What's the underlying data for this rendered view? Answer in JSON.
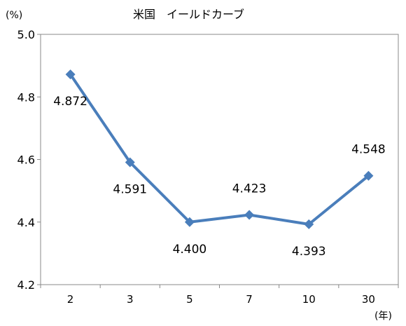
{
  "chart_data": {
    "type": "line",
    "title": "米国　イールドカーブ",
    "y_unit_label": "(%)",
    "x_unit_label": "(年)",
    "categories": [
      "2",
      "3",
      "5",
      "7",
      "10",
      "30"
    ],
    "series": [
      {
        "values": [
          4.872,
          4.591,
          4.4,
          4.423,
          4.393,
          4.548
        ]
      }
    ],
    "data_labels": [
      "4.872",
      "4.591",
      "4.400",
      "4.423",
      "4.393",
      "4.548"
    ],
    "label_placement": [
      "below",
      "below",
      "below",
      "above",
      "below",
      "above"
    ],
    "ylim": [
      4.2,
      5.0
    ],
    "y_ticks": [
      "4.2",
      "4.4",
      "4.6",
      "4.8",
      "5.0"
    ],
    "grid": false,
    "line_color": "#4a7ebb",
    "marker": "diamond"
  }
}
